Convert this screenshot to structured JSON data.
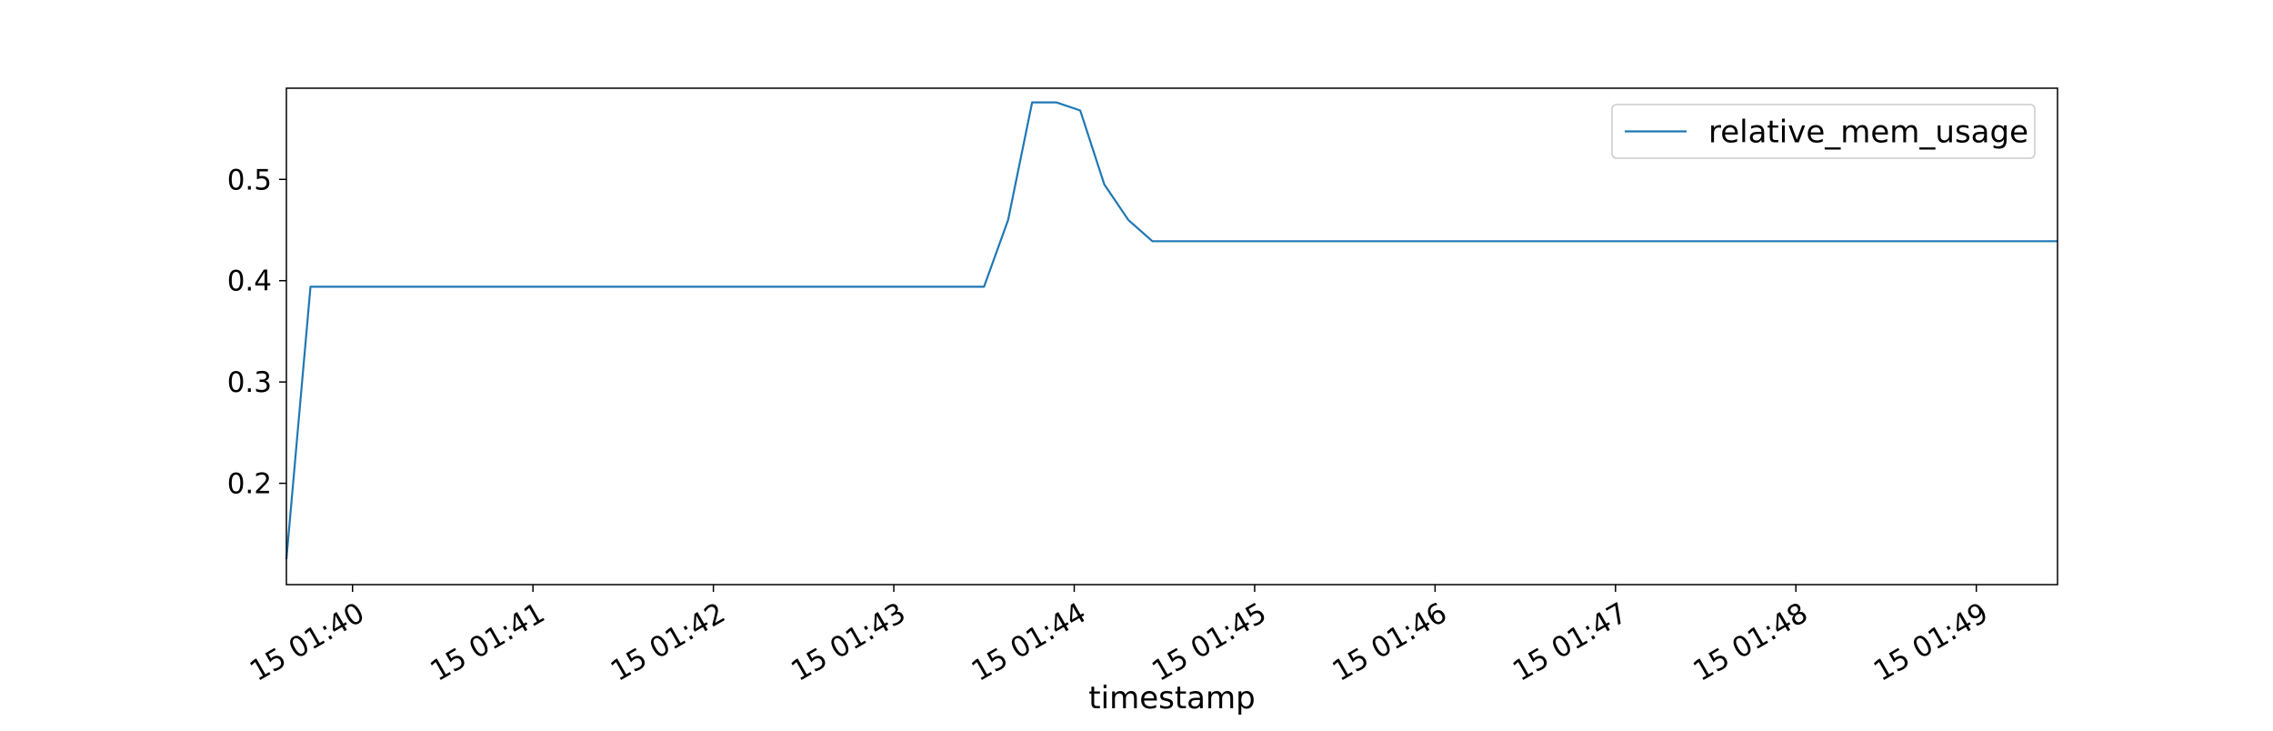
{
  "chart_data": {
    "type": "line",
    "title": "",
    "xlabel": "timestamp",
    "ylabel": "",
    "x_unit": "timestamp (day minute-of-day, HH:MM:SS)",
    "x_range": [
      "15 01:39:38",
      "15 01:49:27"
    ],
    "ylim": [
      0.1,
      0.59
    ],
    "yticks": [
      0.2,
      0.3,
      0.4,
      0.5
    ],
    "ytick_labels": [
      "0.2",
      "0.3",
      "0.4",
      "0.5"
    ],
    "xticks": [
      "15 01:40:00",
      "15 01:41:00",
      "15 01:42:00",
      "15 01:43:00",
      "15 01:44:00",
      "15 01:45:00",
      "15 01:46:00",
      "15 01:47:00",
      "15 01:48:00",
      "15 01:49:00"
    ],
    "xtick_labels": [
      "15 01:40",
      "15 01:41",
      "15 01:42",
      "15 01:43",
      "15 01:44",
      "15 01:45",
      "15 01:46",
      "15 01:47",
      "15 01:48",
      "15 01:49"
    ],
    "grid": false,
    "legend_position": "top-right",
    "series": [
      {
        "name": "relative_mem_usage",
        "color": "#1f77b4",
        "points": [
          [
            "15 01:39:38",
            0.125
          ],
          [
            "15 01:39:46",
            0.394
          ],
          [
            "15 01:40:30",
            0.394
          ],
          [
            "15 01:41:30",
            0.394
          ],
          [
            "15 01:42:30",
            0.394
          ],
          [
            "15 01:43:20",
            0.394
          ],
          [
            "15 01:43:30",
            0.394
          ],
          [
            "15 01:43:38",
            0.46
          ],
          [
            "15 01:43:46",
            0.576
          ],
          [
            "15 01:43:54",
            0.576
          ],
          [
            "15 01:44:02",
            0.568
          ],
          [
            "15 01:44:10",
            0.495
          ],
          [
            "15 01:44:18",
            0.46
          ],
          [
            "15 01:44:26",
            0.439
          ],
          [
            "15 01:45:00",
            0.439
          ],
          [
            "15 01:46:00",
            0.439
          ],
          [
            "15 01:47:00",
            0.439
          ],
          [
            "15 01:48:00",
            0.439
          ],
          [
            "15 01:49:00",
            0.439
          ],
          [
            "15 01:49:27",
            0.439
          ]
        ]
      }
    ]
  }
}
